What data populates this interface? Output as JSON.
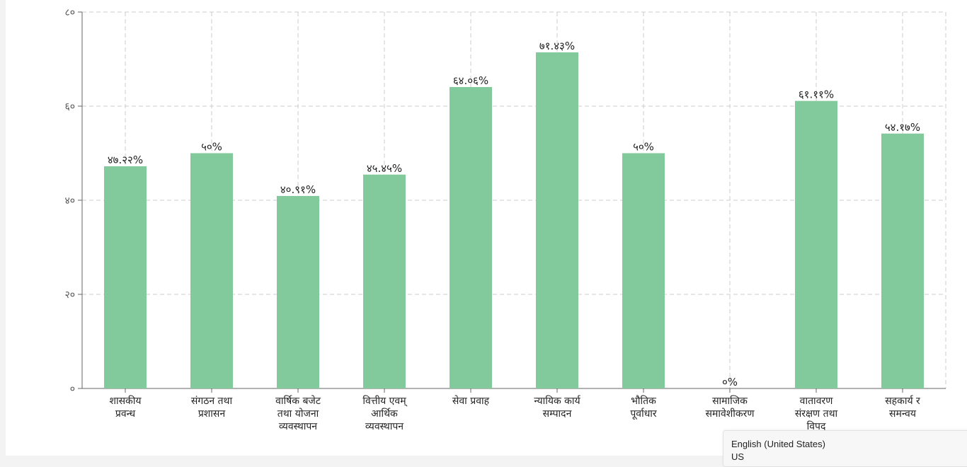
{
  "chart_data": {
    "type": "bar",
    "categories": [
      [
        "शासकीय",
        "प्रवन्ध"
      ],
      [
        "संगठन तथा",
        "प्रशासन"
      ],
      [
        "वार्षिक बजेट",
        "तथा योजना",
        "व्यवस्थापन"
      ],
      [
        "वित्तीय एवम्",
        "आर्थिक",
        "व्यवस्थापन"
      ],
      [
        "सेवा प्रवाह"
      ],
      [
        "न्यायिक कार्य",
        "सम्पादन"
      ],
      [
        "भौतिक",
        "पूर्वाधार"
      ],
      [
        "सामाजिक",
        "समावेशीकरण"
      ],
      [
        "वातावरण",
        "संरक्षण तथा",
        "विपद"
      ],
      [
        "सहकार्य र",
        "समन्वय"
      ]
    ],
    "values": [
      47.22,
      50,
      40.91,
      45.45,
      64.06,
      71.43,
      50,
      0,
      61.11,
      54.17
    ],
    "data_labels": [
      "४७.२२%",
      "५०%",
      "४०.९१%",
      "४५.४५%",
      "६४.०६%",
      "७१.४३%",
      "५०%",
      "०%",
      "६१.११%",
      "५४.१७%"
    ],
    "yticks": [
      0,
      20,
      40,
      60,
      80
    ],
    "ytick_labels": [
      "०",
      "२०",
      "४०",
      "६०",
      "८०"
    ],
    "ylim": [
      0,
      80
    ],
    "grid": true,
    "bar_color": "#82c99c",
    "title": "",
    "xlabel": "",
    "ylabel": ""
  },
  "language_popup": {
    "line1": "English (United States)",
    "line2": "US"
  }
}
